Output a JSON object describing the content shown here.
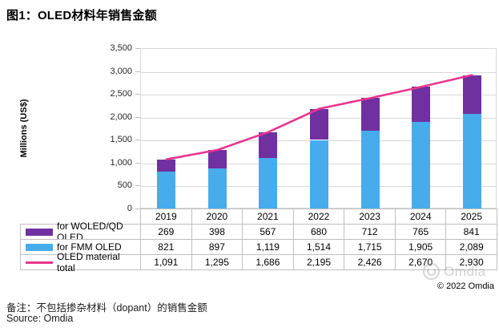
{
  "title": "图1：OLED材料年销售金额",
  "footnote": "备注：不包括掺杂材料（dopant）的销售金额",
  "source": "Source: Omdia",
  "copyright": "© 2022 Omdia",
  "watermark_text": "Omdia",
  "colors": {
    "woled_purple": "#7030A0",
    "fmm_blue": "#47ACEC",
    "total_pink": "#E8368F",
    "grid": "#D9D9D9",
    "table_border": "#BFBFBF"
  },
  "chart_data": {
    "type": "bar",
    "subtype": "stacked-bars-with-line-overlay",
    "categories": [
      "2019",
      "2020",
      "2021",
      "2022",
      "2023",
      "2024",
      "2025"
    ],
    "series": [
      {
        "name": "for WOLED/QD OLED",
        "render": "bar",
        "stack_order": "top",
        "color": "#7030A0",
        "values": [
          269,
          398,
          567,
          680,
          712,
          765,
          841
        ]
      },
      {
        "name": "for FMM OLED",
        "render": "bar",
        "stack_order": "bottom",
        "color": "#47ACEC",
        "values": [
          821,
          897,
          1119,
          1514,
          1715,
          1905,
          2089
        ]
      },
      {
        "name": "OLED material total",
        "render": "line",
        "color": "#E8368F",
        "values": [
          1091,
          1295,
          1686,
          2195,
          2426,
          2670,
          2930
        ]
      }
    ],
    "title": "图1：OLED材料年销售金额",
    "xlabel": "",
    "ylabel": "Millions (US$)",
    "ylim": [
      0,
      3500
    ],
    "ytick_step": 500,
    "grid": true,
    "legend_position": "table-below-chart"
  },
  "table": {
    "header": [
      "2019",
      "2020",
      "2021",
      "2022",
      "2023",
      "2024",
      "2025"
    ],
    "rows": [
      {
        "label": "for WOLED/QD OLED",
        "swatch": "bar",
        "color": "#7030A0",
        "values": [
          "269",
          "398",
          "567",
          "680",
          "712",
          "765",
          "841"
        ]
      },
      {
        "label": "for FMM OLED",
        "swatch": "bar",
        "color": "#47ACEC",
        "values": [
          "821",
          "897",
          "1,119",
          "1,514",
          "1,715",
          "1,905",
          "2,089"
        ]
      },
      {
        "label": "OLED material total",
        "swatch": "line",
        "color": "#E8368F",
        "values": [
          "1,091",
          "1,295",
          "1,686",
          "2,195",
          "2,426",
          "2,670",
          "2,930"
        ]
      }
    ]
  }
}
